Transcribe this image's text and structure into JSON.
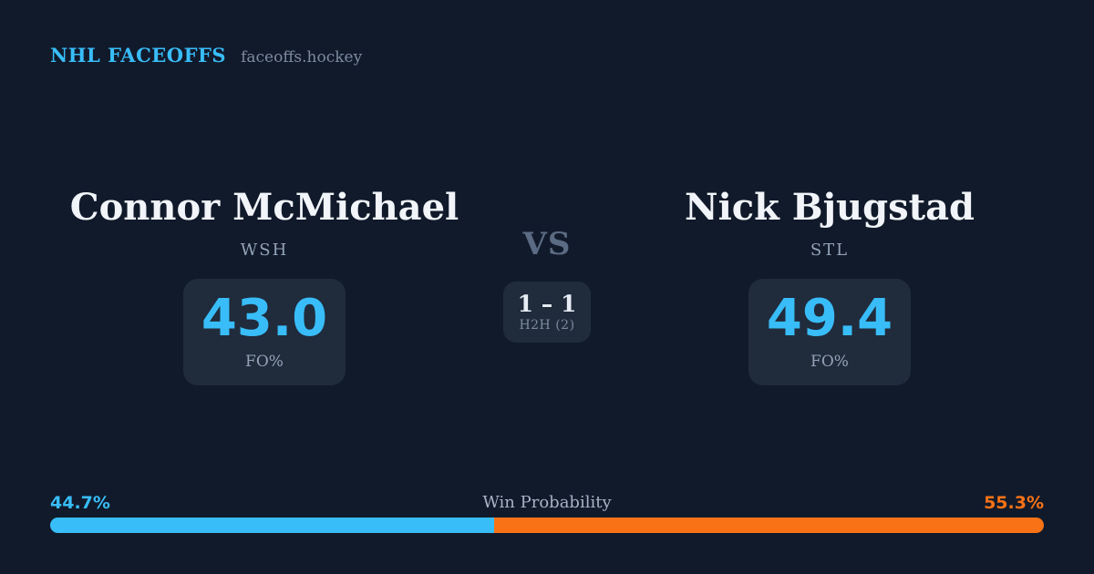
{
  "header": {
    "brand": "NHL FACEOFFS",
    "site": "faceoffs.hockey"
  },
  "players": [
    {
      "name": "Connor McMichael",
      "team": "WSH",
      "stat_value": "43.0",
      "stat_label": "FO%"
    },
    {
      "name": "Nick Bjugstad",
      "team": "STL",
      "stat_value": "49.4",
      "stat_label": "FO%"
    }
  ],
  "center": {
    "vs_label": "VS",
    "h2h_score": "1 – 1",
    "h2h_label": "H2H (2)"
  },
  "win_probability": {
    "label": "Win Probability",
    "left_pct_text": "44.7%",
    "right_pct_text": "55.3%",
    "left_value": 44.7,
    "right_value": 55.3
  },
  "colors": {
    "background": "#111a2b",
    "box_background": "#202b3c",
    "accent_blue": "#38bdf8",
    "accent_orange": "#f97316",
    "muted_text": "#94a3b8",
    "white_text": "#f1f5f9"
  }
}
